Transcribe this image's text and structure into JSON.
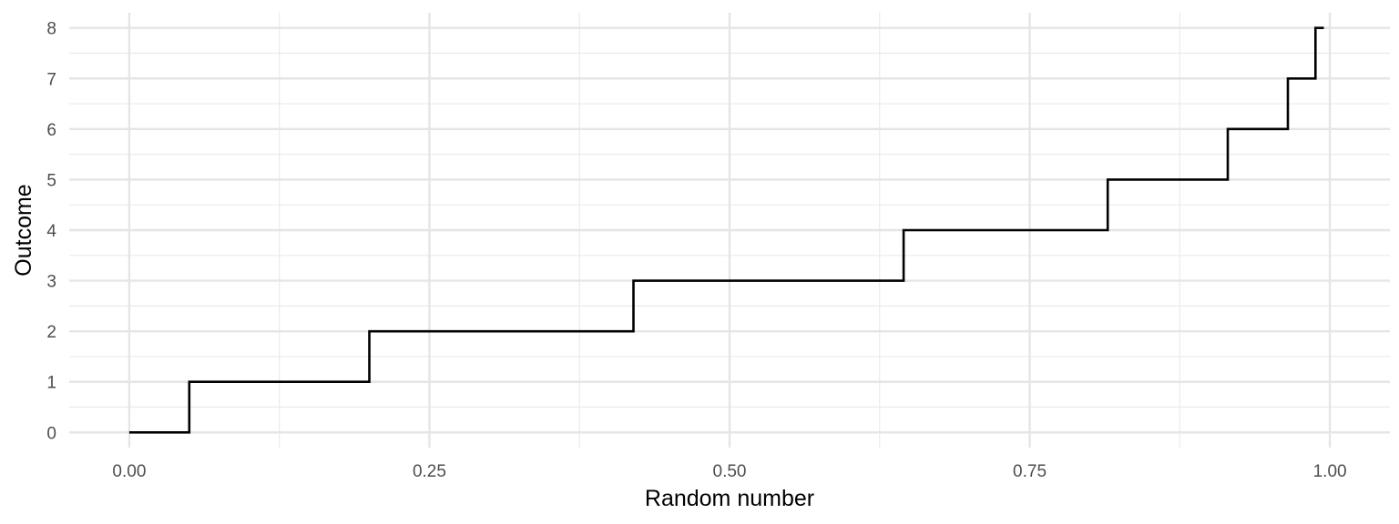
{
  "chart_data": {
    "type": "line",
    "step": true,
    "title": "",
    "xlabel": "Random number",
    "ylabel": "Outcome",
    "xlim": [
      -0.05,
      1.05
    ],
    "ylim": [
      -0.3,
      8.3
    ],
    "xticks": [
      0.0,
      0.25,
      0.5,
      0.75,
      1.0
    ],
    "xtick_labels": [
      "0.00",
      "0.25",
      "0.50",
      "0.75",
      "1.00"
    ],
    "yticks": [
      0,
      1,
      2,
      3,
      4,
      5,
      6,
      7,
      8
    ],
    "ytick_labels": [
      "0",
      "1",
      "2",
      "3",
      "4",
      "5",
      "6",
      "7",
      "8"
    ],
    "grid": true,
    "legend": "none",
    "series": [
      {
        "color": "#000000",
        "points": [
          {
            "x": 0.0,
            "y": 0
          },
          {
            "x": 0.05,
            "y": 0
          },
          {
            "x": 0.05,
            "y": 1
          },
          {
            "x": 0.2,
            "y": 1
          },
          {
            "x": 0.2,
            "y": 2
          },
          {
            "x": 0.42,
            "y": 2
          },
          {
            "x": 0.42,
            "y": 3
          },
          {
            "x": 0.645,
            "y": 3
          },
          {
            "x": 0.645,
            "y": 4
          },
          {
            "x": 0.815,
            "y": 4
          },
          {
            "x": 0.815,
            "y": 5
          },
          {
            "x": 0.915,
            "y": 5
          },
          {
            "x": 0.915,
            "y": 6
          },
          {
            "x": 0.965,
            "y": 6
          },
          {
            "x": 0.965,
            "y": 7
          },
          {
            "x": 0.988,
            "y": 7
          },
          {
            "x": 0.988,
            "y": 8
          },
          {
            "x": 0.995,
            "y": 8
          }
        ]
      }
    ]
  }
}
